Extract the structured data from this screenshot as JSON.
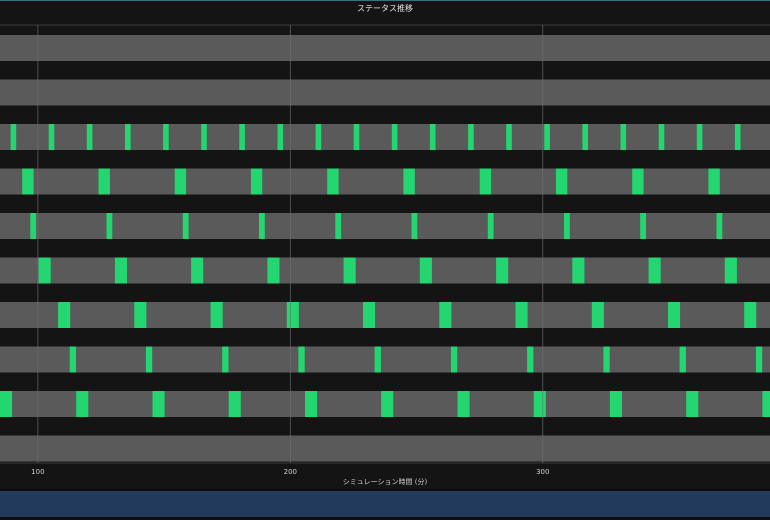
{
  "colors": {
    "background": "#141414",
    "track": "#5a5a5a",
    "event": "#23d66f",
    "grid": "#6e6e6e",
    "scrollbar": "#223a5c"
  },
  "chart_data": {
    "type": "timeline",
    "title": "ステータス推移",
    "xlabel": "シミュレーション時間 (分)",
    "xlim": [
      85,
      390
    ],
    "xticks": [
      100,
      200,
      300
    ],
    "grid": true,
    "tracks": [
      {
        "events": []
      },
      {
        "events": []
      },
      {
        "period": 15.1,
        "start": 89.2,
        "width": 2.2,
        "events": [
          89.2,
          104.3,
          119.4,
          134.5,
          149.6,
          164.7,
          179.8,
          194.9,
          210.0,
          225.1,
          240.2,
          255.3,
          270.4,
          285.5,
          300.6,
          315.7,
          330.8,
          345.9,
          361.0,
          376.1
        ]
      },
      {
        "period": 30.2,
        "start": 93.8,
        "width": 4.5,
        "events": [
          93.8,
          124.0,
          154.2,
          184.4,
          214.6,
          244.8,
          275.0,
          305.2,
          335.4,
          365.6
        ]
      },
      {
        "period": 30.2,
        "start": 97.0,
        "width": 2.3,
        "events": [
          97.0,
          127.2,
          157.4,
          187.6,
          217.8,
          248.0,
          278.2,
          308.4,
          338.6,
          368.8
        ]
      },
      {
        "period": 30.2,
        "start": 100.3,
        "width": 4.8,
        "events": [
          100.3,
          130.5,
          160.7,
          190.9,
          221.1,
          251.3,
          281.5,
          311.7,
          341.9,
          372.1
        ]
      },
      {
        "period": 30.2,
        "start": 108.0,
        "width": 4.8,
        "events": [
          108.0,
          138.2,
          168.4,
          198.6,
          228.8,
          259.0,
          289.2,
          319.4,
          349.6,
          379.8
        ]
      },
      {
        "period": 30.2,
        "start": 112.6,
        "width": 2.5,
        "events": [
          112.6,
          142.8,
          173.0,
          203.2,
          233.4,
          263.6,
          293.8,
          324.0,
          354.2,
          384.4
        ]
      },
      {
        "period": 30.2,
        "start": 85.0,
        "width": 4.8,
        "events": [
          85.0,
          115.2,
          145.4,
          175.6,
          205.8,
          236.0,
          266.2,
          296.4,
          326.6,
          356.8,
          387.0
        ]
      },
      {
        "events": []
      }
    ]
  }
}
